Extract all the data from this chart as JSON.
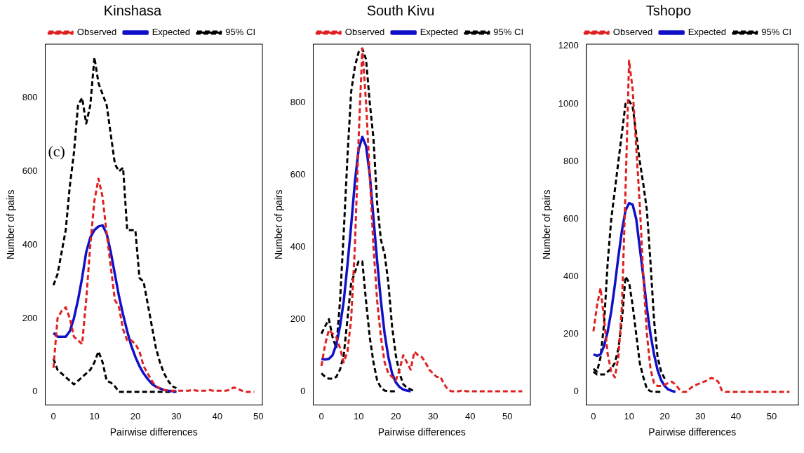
{
  "chart_data": [
    {
      "type": "line",
      "title": "Kinshasa",
      "xlabel": "Pairwise differences",
      "ylabel": "Number of pairs",
      "annotations": [
        "(c)"
      ],
      "legend": "top right",
      "grid": false,
      "marker": "none",
      "xlim": [
        -2,
        51
      ],
      "ylim": [
        -36,
        946
      ],
      "xticks": [
        0,
        10,
        20,
        30,
        40,
        50
      ],
      "yticks": [
        0,
        200,
        400,
        600,
        800
      ],
      "x": [
        0,
        1,
        2,
        3,
        4,
        5,
        6,
        7,
        8,
        9,
        10,
        11,
        12,
        13,
        14,
        15,
        16,
        17,
        18,
        19,
        20,
        21,
        22,
        23,
        24,
        25,
        26,
        27,
        28,
        29,
        30,
        31,
        32,
        33,
        34,
        35,
        36,
        37,
        38,
        39,
        40,
        41,
        42,
        43,
        44,
        45,
        46,
        47,
        48,
        49
      ],
      "series": [
        {
          "name": "Observed",
          "color": "#e02020",
          "line_style": "dashed",
          "values": [
            65,
            200,
            220,
            230,
            200,
            150,
            140,
            130,
            250,
            400,
            520,
            580,
            530,
            430,
            340,
            250,
            230,
            170,
            140,
            140,
            130,
            110,
            70,
            50,
            30,
            15,
            10,
            5,
            3,
            3,
            3,
            3,
            3,
            3,
            5,
            3,
            3,
            3,
            5,
            3,
            3,
            3,
            3,
            5,
            12,
            8,
            3,
            0,
            0,
            0
          ]
        },
        {
          "name": "Expected",
          "color": "#1010c8",
          "line_style": "solid",
          "x": [
            0,
            1,
            2,
            3,
            4,
            5,
            6,
            7,
            8,
            9,
            10,
            11,
            12,
            13,
            14,
            15,
            16,
            17,
            18,
            19,
            20,
            21,
            22,
            23,
            24,
            25,
            26,
            27,
            28,
            29,
            30
          ],
          "values": [
            160,
            150,
            150,
            150,
            165,
            200,
            250,
            310,
            380,
            420,
            440,
            450,
            453,
            430,
            380,
            320,
            260,
            210,
            165,
            125,
            95,
            70,
            50,
            35,
            22,
            14,
            9,
            5,
            3,
            2,
            1
          ]
        },
        {
          "name": "95% CI",
          "color": "#000000",
          "line_style": "dashed",
          "x": [
            0,
            1,
            2,
            3,
            4,
            5,
            6,
            7,
            8,
            9,
            10,
            11,
            12,
            13,
            14,
            15,
            16,
            17,
            18,
            19,
            20,
            21,
            22,
            23,
            24,
            25,
            26,
            27,
            28,
            29,
            30
          ],
          "values": [
            290,
            320,
            380,
            440,
            560,
            650,
            780,
            800,
            730,
            780,
            910,
            840,
            810,
            780,
            700,
            620,
            600,
            610,
            440,
            440,
            440,
            310,
            300,
            240,
            180,
            120,
            80,
            50,
            30,
            15,
            10
          ]
        },
        {
          "color": "#000000",
          "line_style": "dashed",
          "x": [
            0,
            1,
            2,
            3,
            4,
            5,
            6,
            7,
            8,
            9,
            10,
            11,
            12,
            13,
            14,
            15,
            16,
            17,
            18,
            19,
            20,
            21,
            22,
            23,
            24,
            25,
            26,
            27,
            28,
            29,
            30
          ],
          "values": [
            90,
            60,
            50,
            40,
            30,
            20,
            30,
            40,
            50,
            60,
            80,
            110,
            80,
            30,
            25,
            15,
            0,
            0,
            0,
            0,
            0,
            0,
            0,
            0,
            0,
            0,
            0,
            0,
            0,
            0,
            0
          ]
        }
      ]
    },
    {
      "type": "line",
      "title": "South Kivu",
      "xlabel": "Pairwise differences",
      "ylabel": "Number of pairs",
      "legend": "top right",
      "grid": false,
      "marker": "none",
      "xlim": [
        -2.2,
        56.2
      ],
      "ylim": [
        -38,
        962
      ],
      "xticks": [
        0,
        10,
        20,
        30,
        40,
        50
      ],
      "yticks": [
        0,
        200,
        400,
        600,
        800
      ],
      "x": [
        0,
        1,
        2,
        3,
        4,
        5,
        6,
        7,
        8,
        9,
        10,
        11,
        12,
        13,
        14,
        15,
        16,
        17,
        18,
        19,
        20,
        21,
        22,
        23,
        24,
        25,
        26,
        27,
        28,
        29,
        30,
        31,
        32,
        33,
        34,
        35,
        36,
        37,
        38,
        39,
        40,
        41,
        42,
        43,
        44,
        45,
        46,
        47,
        48,
        49,
        50,
        51,
        52,
        53,
        54
      ],
      "series": [
        {
          "name": "Observed",
          "color": "#e02020",
          "line_style": "dashed",
          "values": [
            70,
            130,
            170,
            160,
            150,
            120,
            80,
            110,
            200,
            400,
            700,
            950,
            800,
            600,
            400,
            250,
            150,
            80,
            50,
            40,
            30,
            60,
            100,
            80,
            60,
            110,
            100,
            95,
            80,
            60,
            50,
            40,
            40,
            20,
            5,
            0,
            0,
            0,
            3,
            0,
            0,
            0,
            0,
            0,
            0,
            0,
            0,
            0,
            0,
            0,
            0,
            0,
            0,
            0,
            0
          ]
        },
        {
          "name": "Expected",
          "color": "#1010c8",
          "line_style": "solid",
          "x": [
            0,
            1,
            2,
            3,
            4,
            5,
            6,
            7,
            8,
            9,
            10,
            11,
            12,
            13,
            14,
            15,
            16,
            17,
            18,
            19,
            20,
            21,
            22,
            23,
            24
          ],
          "values": [
            90,
            88,
            90,
            100,
            130,
            180,
            250,
            350,
            460,
            580,
            670,
            705,
            680,
            600,
            480,
            360,
            250,
            160,
            95,
            50,
            25,
            12,
            5,
            2,
            0
          ]
        },
        {
          "name": "95% CI",
          "color": "#000000",
          "line_style": "dashed",
          "x": [
            0,
            1,
            2,
            3,
            4,
            5,
            6,
            7,
            8,
            9,
            10,
            11,
            12,
            13,
            14,
            15,
            16,
            17,
            18,
            19,
            20,
            21,
            22,
            23,
            24,
            25
          ],
          "values": [
            160,
            180,
            200,
            150,
            120,
            250,
            440,
            650,
            830,
            900,
            940,
            950,
            920,
            800,
            700,
            520,
            420,
            380,
            300,
            180,
            100,
            50,
            20,
            10,
            5,
            0
          ]
        },
        {
          "color": "#000000",
          "line_style": "dashed",
          "x": [
            0,
            1,
            2,
            3,
            4,
            5,
            6,
            7,
            8,
            9,
            10,
            11,
            12,
            13,
            14,
            15,
            16,
            17,
            18,
            19,
            20
          ],
          "values": [
            50,
            40,
            35,
            35,
            40,
            60,
            100,
            200,
            300,
            330,
            360,
            360,
            250,
            150,
            80,
            30,
            10,
            2,
            0,
            0,
            0
          ]
        }
      ]
    },
    {
      "type": "line",
      "title": "Tshopo",
      "xlabel": "Pairwise differences",
      "ylabel": "Number of pairs",
      "legend": "top right",
      "grid": false,
      "marker": "none",
      "xlim": [
        -2,
        57.5
      ],
      "ylim": [
        -46,
        1207
      ],
      "xticks": [
        0,
        10,
        20,
        30,
        40,
        50
      ],
      "yticks": [
        0,
        200,
        400,
        600,
        800,
        1000,
        1200
      ],
      "x": [
        0,
        1,
        2,
        3,
        4,
        5,
        6,
        7,
        8,
        9,
        10,
        11,
        12,
        13,
        14,
        15,
        16,
        17,
        18,
        19,
        20,
        21,
        22,
        23,
        24,
        25,
        26,
        27,
        28,
        29,
        30,
        31,
        32,
        33,
        34,
        35,
        36,
        37,
        38,
        39,
        40,
        41,
        42,
        43,
        44,
        45,
        46,
        47,
        48,
        49,
        50,
        51,
        52,
        53,
        54,
        55
      ],
      "series": [
        {
          "name": "Observed",
          "color": "#e02020",
          "line_style": "dashed",
          "values": [
            210,
            300,
            360,
            250,
            130,
            70,
            50,
            120,
            300,
            700,
            1150,
            1050,
            850,
            650,
            400,
            200,
            80,
            30,
            20,
            20,
            25,
            30,
            35,
            25,
            10,
            0,
            0,
            10,
            20,
            25,
            30,
            35,
            40,
            48,
            45,
            35,
            5,
            0,
            0,
            0,
            0,
            0,
            0,
            0,
            0,
            0,
            0,
            0,
            0,
            0,
            0,
            0,
            0,
            0,
            0,
            0
          ]
        },
        {
          "name": "Expected",
          "color": "#1010c8",
          "line_style": "solid",
          "x": [
            0,
            1,
            2,
            3,
            4,
            5,
            6,
            7,
            8,
            9,
            10,
            11,
            12,
            13,
            14,
            15,
            16,
            17,
            18,
            19,
            20,
            21,
            22,
            23
          ],
          "values": [
            130,
            125,
            130,
            160,
            210,
            280,
            370,
            470,
            560,
            630,
            655,
            650,
            600,
            500,
            400,
            290,
            200,
            130,
            75,
            40,
            20,
            8,
            3,
            0
          ]
        },
        {
          "name": "95% CI",
          "color": "#000000",
          "line_style": "dashed",
          "x": [
            0,
            1,
            2,
            3,
            4,
            5,
            6,
            7,
            8,
            9,
            10,
            11,
            12,
            13,
            14,
            15,
            16,
            17,
            18,
            19,
            20
          ],
          "values": [
            80,
            70,
            120,
            240,
            450,
            600,
            700,
            800,
            900,
            1000,
            1010,
            990,
            895,
            800,
            720,
            630,
            450,
            250,
            120,
            70,
            45
          ]
        },
        {
          "color": "#000000",
          "line_style": "dashed",
          "x": [
            0,
            1,
            2,
            3,
            4,
            5,
            6,
            7,
            8,
            9,
            10,
            11,
            12,
            13,
            14,
            15,
            16,
            17,
            18,
            19
          ],
          "values": [
            70,
            60,
            60,
            60,
            70,
            80,
            100,
            150,
            250,
            400,
            380,
            300,
            200,
            100,
            50,
            10,
            2,
            0,
            0,
            0
          ]
        }
      ]
    }
  ]
}
